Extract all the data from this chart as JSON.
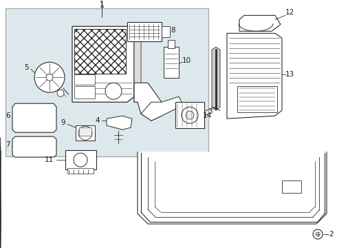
{
  "bg_color": "#ffffff",
  "main_box_fc": "#e8eef0",
  "line_color": "#2a2a2a",
  "label_color": "#1a1a1a",
  "fig_width": 4.9,
  "fig_height": 3.6,
  "dpi": 100
}
